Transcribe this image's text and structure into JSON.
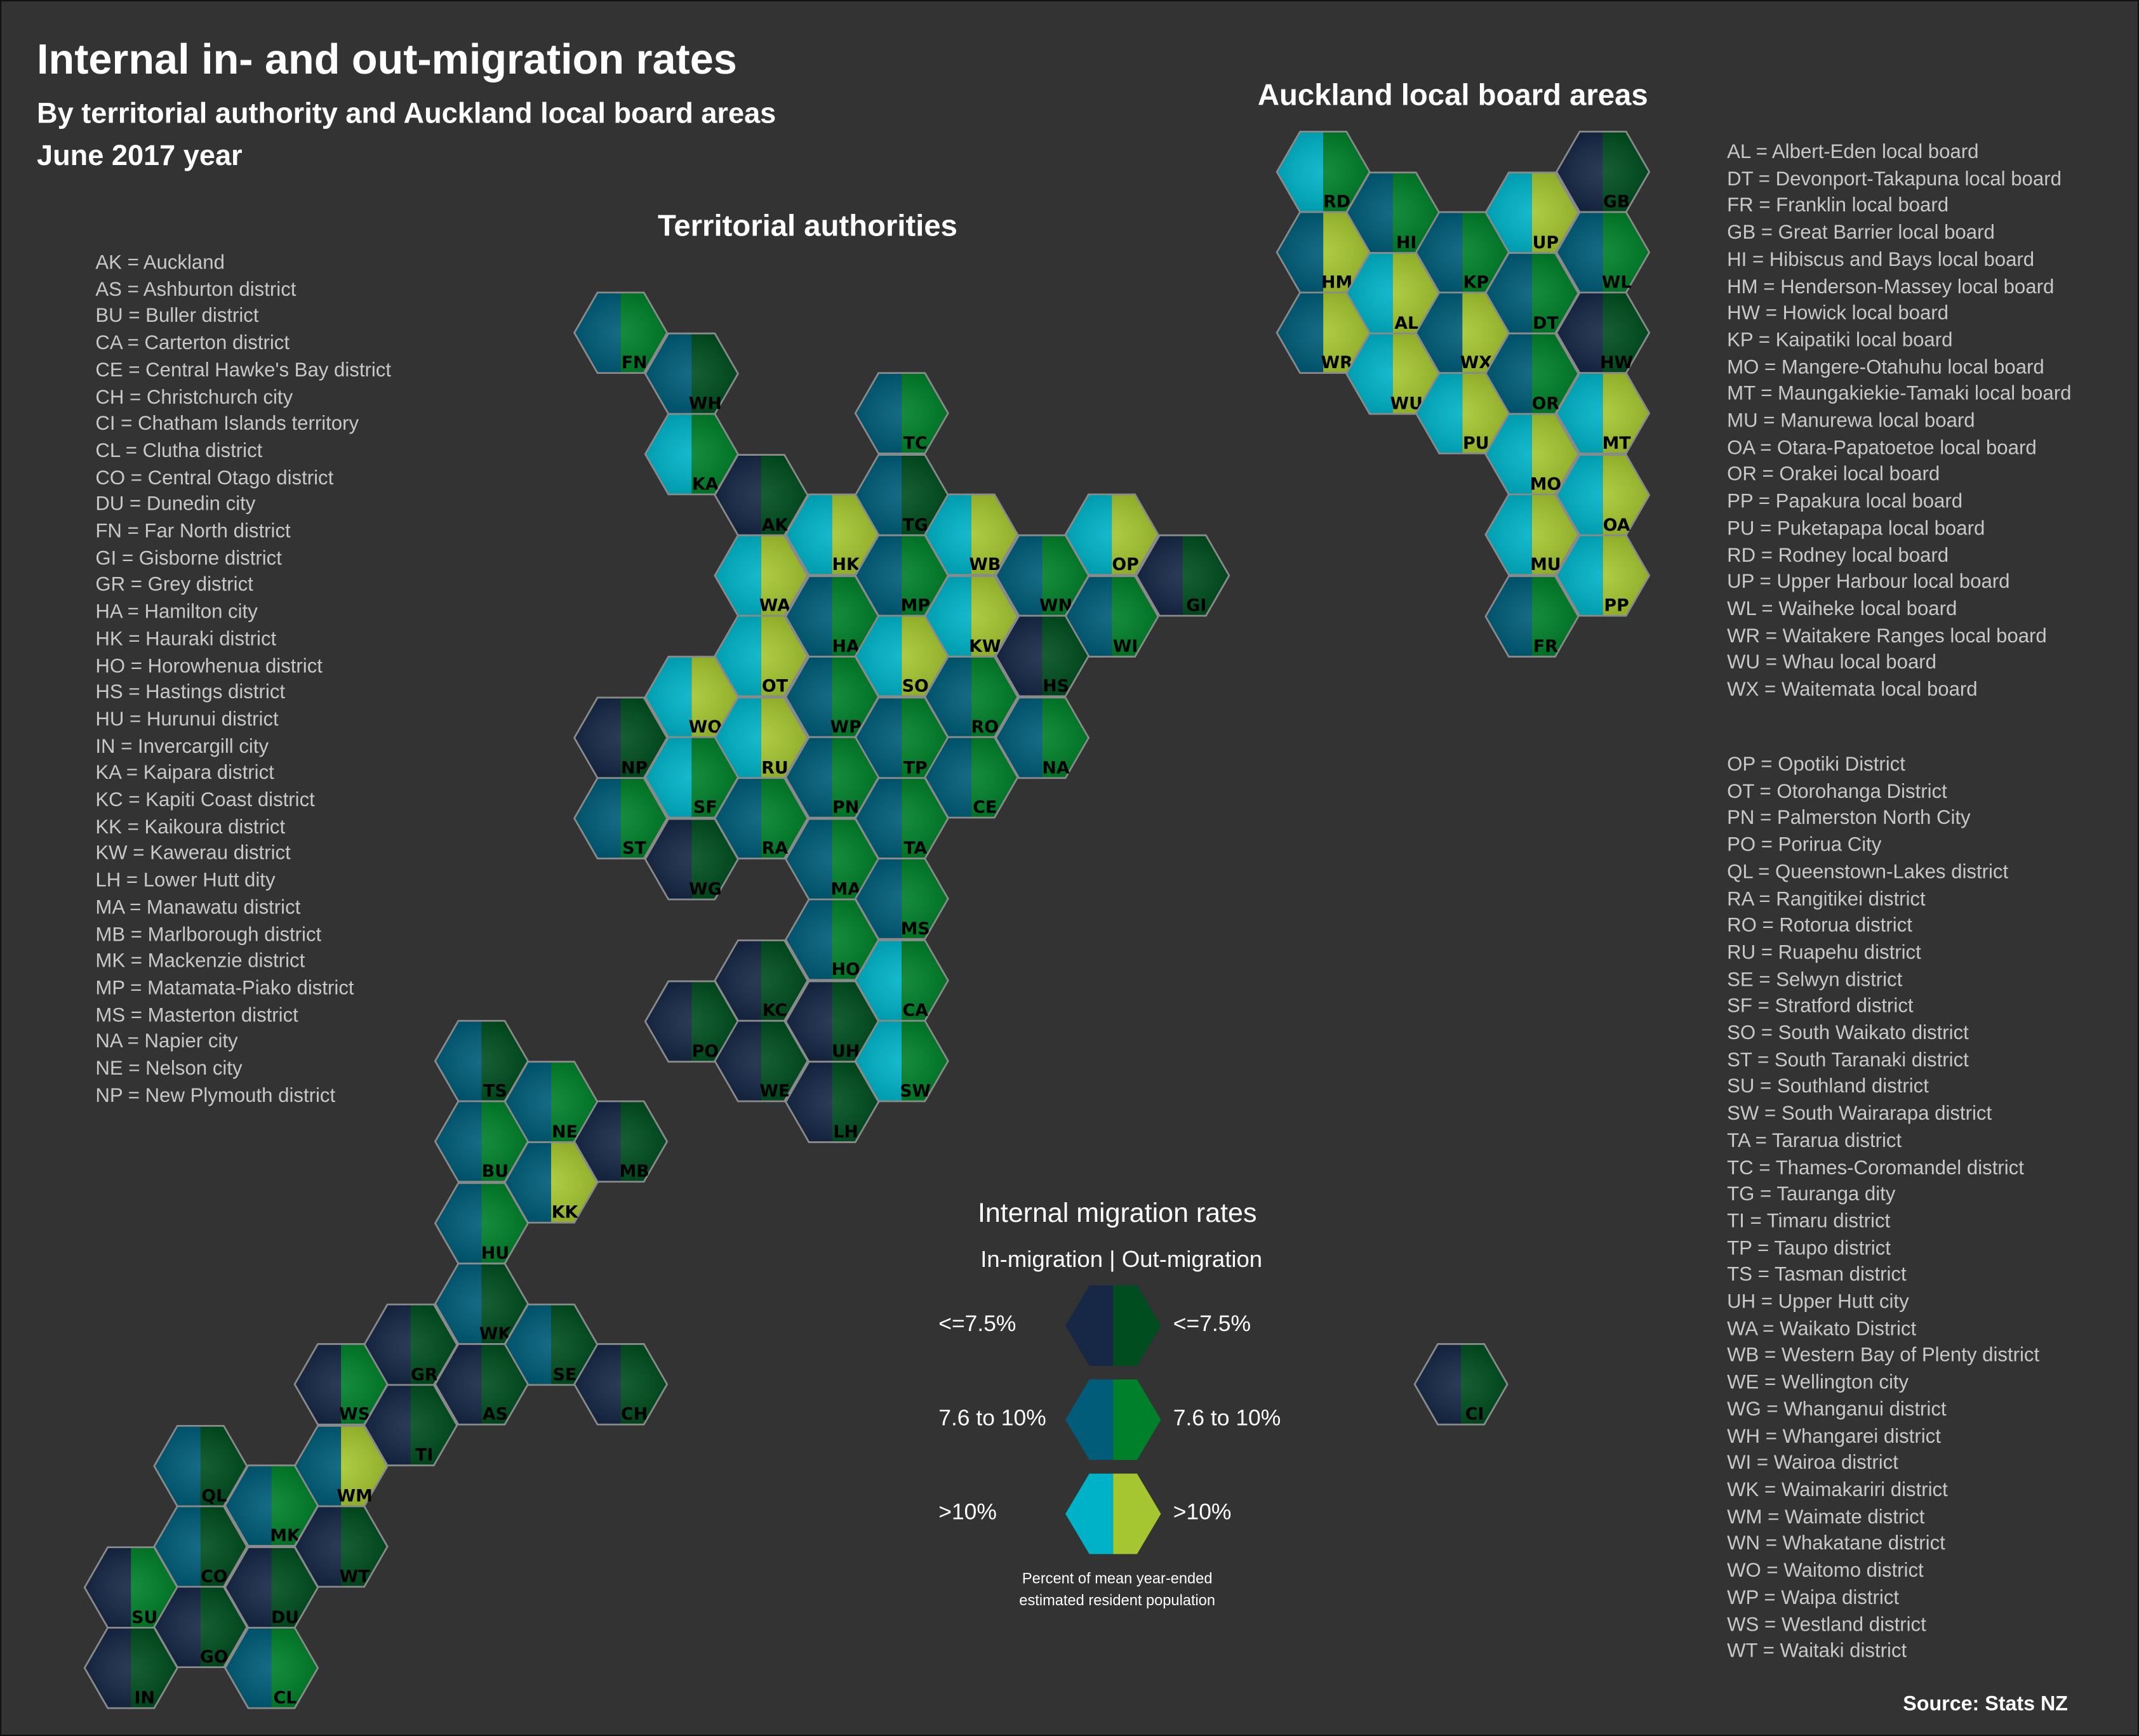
{
  "header": {
    "title": "Internal in- and out-migration rates",
    "subtitle": "By territorial authority and Auckland local board areas",
    "period": "June 2017 year"
  },
  "sections": {
    "territorial": "Territorial authorities",
    "auckland": "Auckland local board areas"
  },
  "legend": {
    "title": "Internal migration rates",
    "subtitle": "In-migration | Out-migration",
    "classes": [
      {
        "level": 1,
        "in_label": "<=7.5%",
        "out_label": "<=7.5%"
      },
      {
        "level": 2,
        "in_label": "7.6 to 10%",
        "out_label": "7.6 to 10%"
      },
      {
        "level": 3,
        "in_label": ">10%",
        "out_label": ">10%"
      }
    ],
    "note_line1": "Percent of mean year-ended",
    "note_line2": "estimated resident population"
  },
  "colors": {
    "in": {
      "1": "#162846",
      "2": "#005c78",
      "3": "#00b2c7"
    },
    "out": {
      "1": "#004e20",
      "2": "#00802a",
      "3": "#a5c631"
    },
    "background": "#333333"
  },
  "source": "Source: Stats NZ",
  "territorial_authorities": [
    {
      "code": "FN",
      "in": 2,
      "out": 2
    },
    {
      "code": "WH",
      "in": 2,
      "out": 1
    },
    {
      "code": "KA",
      "in": 3,
      "out": 2
    },
    {
      "code": "TC",
      "in": 2,
      "out": 2
    },
    {
      "code": "AK",
      "in": 1,
      "out": 1
    },
    {
      "code": "TG",
      "in": 2,
      "out": 1
    },
    {
      "code": "HK",
      "in": 3,
      "out": 3
    },
    {
      "code": "WB",
      "in": 3,
      "out": 3
    },
    {
      "code": "OP",
      "in": 3,
      "out": 3
    },
    {
      "code": "GI",
      "in": 1,
      "out": 1
    },
    {
      "code": "WA",
      "in": 3,
      "out": 3
    },
    {
      "code": "MP",
      "in": 2,
      "out": 2
    },
    {
      "code": "WN",
      "in": 2,
      "out": 2
    },
    {
      "code": "HA",
      "in": 2,
      "out": 2
    },
    {
      "code": "KW",
      "in": 3,
      "out": 3
    },
    {
      "code": "WI",
      "in": 2,
      "out": 2
    },
    {
      "code": "OT",
      "in": 3,
      "out": 3
    },
    {
      "code": "SO",
      "in": 3,
      "out": 3
    },
    {
      "code": "HS",
      "in": 1,
      "out": 1
    },
    {
      "code": "WO",
      "in": 3,
      "out": 3
    },
    {
      "code": "WP",
      "in": 2,
      "out": 2
    },
    {
      "code": "RO",
      "in": 2,
      "out": 2
    },
    {
      "code": "NP",
      "in": 1,
      "out": 1
    },
    {
      "code": "RU",
      "in": 3,
      "out": 3
    },
    {
      "code": "TP",
      "in": 2,
      "out": 2
    },
    {
      "code": "NA",
      "in": 2,
      "out": 2
    },
    {
      "code": "SF",
      "in": 3,
      "out": 2
    },
    {
      "code": "PN",
      "in": 2,
      "out": 2
    },
    {
      "code": "CE",
      "in": 2,
      "out": 2
    },
    {
      "code": "ST",
      "in": 2,
      "out": 2
    },
    {
      "code": "RA",
      "in": 2,
      "out": 2
    },
    {
      "code": "TA",
      "in": 2,
      "out": 2
    },
    {
      "code": "WG",
      "in": 1,
      "out": 1
    },
    {
      "code": "MA",
      "in": 2,
      "out": 2
    },
    {
      "code": "MS",
      "in": 2,
      "out": 2
    },
    {
      "code": "HO",
      "in": 2,
      "out": 2
    },
    {
      "code": "CA",
      "in": 3,
      "out": 2
    },
    {
      "code": "KC",
      "in": 1,
      "out": 1
    },
    {
      "code": "PO",
      "in": 1,
      "out": 1
    },
    {
      "code": "UH",
      "in": 1,
      "out": 1
    },
    {
      "code": "SW",
      "in": 3,
      "out": 2
    },
    {
      "code": "WE",
      "in": 1,
      "out": 1
    },
    {
      "code": "LH",
      "in": 1,
      "out": 1
    },
    {
      "code": "TS",
      "in": 2,
      "out": 1
    },
    {
      "code": "NE",
      "in": 2,
      "out": 2
    },
    {
      "code": "MB",
      "in": 1,
      "out": 1
    },
    {
      "code": "BU",
      "in": 2,
      "out": 2
    },
    {
      "code": "KK",
      "in": 2,
      "out": 3
    },
    {
      "code": "HU",
      "in": 2,
      "out": 2
    },
    {
      "code": "WK",
      "in": 2,
      "out": 1
    },
    {
      "code": "GR",
      "in": 1,
      "out": 1
    },
    {
      "code": "SE",
      "in": 2,
      "out": 1
    },
    {
      "code": "AS",
      "in": 1,
      "out": 1
    },
    {
      "code": "CH",
      "in": 1,
      "out": 1
    },
    {
      "code": "WS",
      "in": 1,
      "out": 2
    },
    {
      "code": "TI",
      "in": 1,
      "out": 1
    },
    {
      "code": "WM",
      "in": 2,
      "out": 3
    },
    {
      "code": "QL",
      "in": 2,
      "out": 1
    },
    {
      "code": "MK",
      "in": 2,
      "out": 2
    },
    {
      "code": "WT",
      "in": 1,
      "out": 1
    },
    {
      "code": "CO",
      "in": 2,
      "out": 1
    },
    {
      "code": "SU",
      "in": 1,
      "out": 2
    },
    {
      "code": "DU",
      "in": 1,
      "out": 1
    },
    {
      "code": "GO",
      "in": 1,
      "out": 1
    },
    {
      "code": "IN",
      "in": 1,
      "out": 1
    },
    {
      "code": "CL",
      "in": 2,
      "out": 2
    },
    {
      "code": "CI",
      "in": 1,
      "out": 1
    }
  ],
  "auckland_boards": [
    {
      "code": "RD",
      "in": 3,
      "out": 2
    },
    {
      "code": "GB",
      "in": 1,
      "out": 1
    },
    {
      "code": "HI",
      "in": 2,
      "out": 2
    },
    {
      "code": "UP",
      "in": 3,
      "out": 3
    },
    {
      "code": "HM",
      "in": 2,
      "out": 3
    },
    {
      "code": "KP",
      "in": 2,
      "out": 2
    },
    {
      "code": "WL",
      "in": 2,
      "out": 2
    },
    {
      "code": "AL",
      "in": 3,
      "out": 3
    },
    {
      "code": "DT",
      "in": 2,
      "out": 2
    },
    {
      "code": "WR",
      "in": 2,
      "out": 3
    },
    {
      "code": "WX",
      "in": 2,
      "out": 3
    },
    {
      "code": "HW",
      "in": 1,
      "out": 1
    },
    {
      "code": "WU",
      "in": 3,
      "out": 3
    },
    {
      "code": "OR",
      "in": 2,
      "out": 2
    },
    {
      "code": "PU",
      "in": 3,
      "out": 3
    },
    {
      "code": "MT",
      "in": 3,
      "out": 3
    },
    {
      "code": "MO",
      "in": 3,
      "out": 3
    },
    {
      "code": "OA",
      "in": 3,
      "out": 3
    },
    {
      "code": "MU",
      "in": 3,
      "out": 3
    },
    {
      "code": "PP",
      "in": 3,
      "out": 3
    },
    {
      "code": "FR",
      "in": 2,
      "out": 2
    }
  ],
  "key_left": [
    "AK = Auckland",
    "AS = Ashburton district",
    "BU = Buller district",
    "CA = Carterton district",
    "CE = Central Hawke's Bay district",
    "CH = Christchurch city",
    "CI = Chatham Islands territory",
    "CL = Clutha district",
    "CO = Central Otago district",
    "DU = Dunedin city",
    "FN = Far North district",
    "GI = Gisborne district",
    "GR = Grey district",
    "HA = Hamilton city",
    "HK = Hauraki district",
    "HO = Horowhenua district",
    "HS = Hastings district",
    "HU = Hurunui district",
    "IN = Invercargill city",
    "KA = Kaipara district",
    "KC = Kapiti Coast district",
    "KK = Kaikoura district",
    "KW = Kawerau district",
    "LH = Lower Hutt dity",
    "MA = Manawatu district",
    "MB = Marlborough district",
    "MK = Mackenzie district",
    "MP = Matamata-Piako district",
    "MS = Masterton district",
    "NA = Napier city",
    "NE = Nelson city",
    "NP = New Plymouth district"
  ],
  "key_auckland": [
    "AL = Albert-Eden local board",
    "DT = Devonport-Takapuna local board",
    "FR = Franklin local board",
    "GB = Great Barrier local board",
    "HI = Hibiscus and Bays local board",
    "HM = Henderson-Massey local board",
    "HW = Howick local board",
    "KP = Kaipatiki local board",
    "MO = Mangere-Otahuhu local board",
    "MT = Maungakiekie-Tamaki local board",
    "MU = Manurewa local board",
    "OA = Otara-Papatoetoe local board",
    "OR = Orakei local board",
    "PP = Papakura local board",
    "PU = Puketapapa local board",
    "RD = Rodney local board",
    "UP = Upper Harbour local board",
    "WL = Waiheke local board",
    "WR = Waitakere Ranges local board",
    "WU = Whau local board",
    "WX = Waitemata local board"
  ],
  "key_right": [
    "OP = Opotiki District",
    "OT = Otorohanga District",
    "PN = Palmerston North City",
    "PO = Porirua City",
    "QL = Queenstown-Lakes district",
    "RA = Rangitikei district",
    "RO = Rotorua district",
    "RU = Ruapehu district",
    "SE = Selwyn district",
    "SF = Stratford district",
    "SO = South Waikato district",
    "ST = South Taranaki district",
    "SU = Southland district",
    "SW = South Wairarapa district",
    "TA = Tararua district",
    "TC = Thames-Coromandel district",
    "TG = Tauranga dity",
    "TI = Timaru district",
    "TP = Taupo district",
    "TS = Tasman district",
    "UH = Upper Hutt city",
    "WA = Waikato District",
    "WB = Western Bay of Plenty district",
    "WE = Wellington city",
    "WG = Whanganui district",
    "WH = Whangarei district",
    "WI = Wairoa district",
    "WK = Waimakariri district",
    "WM = Waimate district",
    "WN = Whakatane district",
    "WO = Waitomo district",
    "WP = Waipa district",
    "WS = Westland district",
    "WT = Waitaki district"
  ]
}
